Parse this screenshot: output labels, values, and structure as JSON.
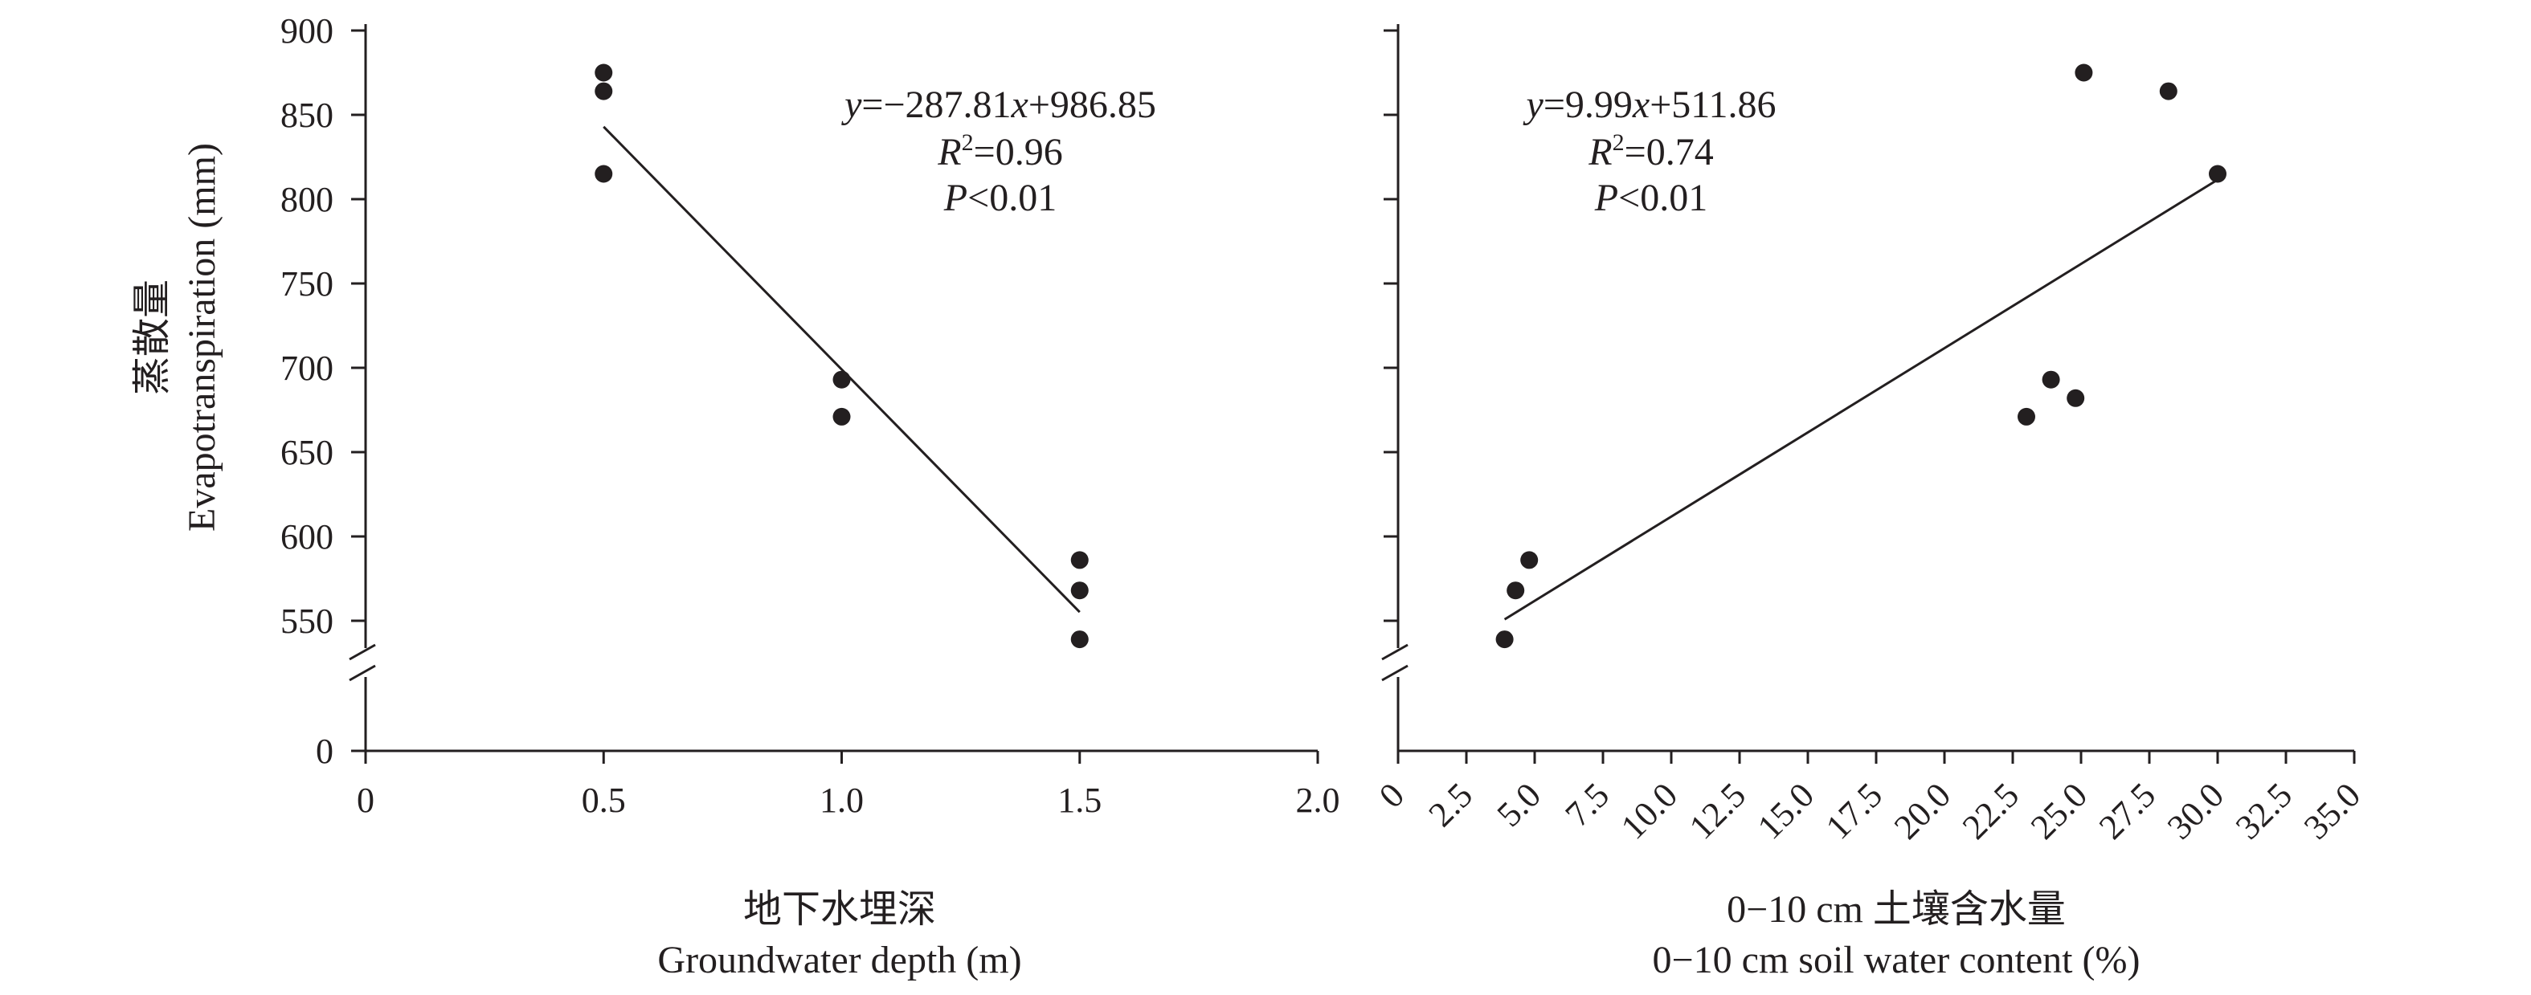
{
  "colors": {
    "ink": "#231f20",
    "background": "#ffffff"
  },
  "y_axis_title": {
    "zh": "蒸散量",
    "en": "Evapotranspiration (mm)"
  },
  "chart_data": [
    {
      "type": "scatter",
      "xlabel_zh": "地下水埋深",
      "xlabel_en": "Groundwater depth (m)",
      "ylabel": "Evapotranspiration (mm)",
      "xlim": [
        0,
        2.0
      ],
      "ylim": [
        0,
        900
      ],
      "y_axis_break": [
        500,
        550
      ],
      "x_ticks": [
        0,
        0.5,
        1.0,
        1.5,
        2.0
      ],
      "x_tick_labels": [
        "0",
        "0.5",
        "1.0",
        "1.5",
        "2.0"
      ],
      "y_ticks": [
        0,
        550,
        600,
        650,
        700,
        750,
        800,
        850,
        900
      ],
      "y_tick_labels": [
        "0",
        "550",
        "600",
        "650",
        "700",
        "750",
        "800",
        "850",
        "900"
      ],
      "grid": false,
      "points": [
        {
          "x": 0.5,
          "y": 875
        },
        {
          "x": 0.5,
          "y": 864
        },
        {
          "x": 0.5,
          "y": 815
        },
        {
          "x": 1.0,
          "y": 693
        },
        {
          "x": 1.0,
          "y": 671
        },
        {
          "x": 1.5,
          "y": 586
        },
        {
          "x": 1.5,
          "y": 568
        },
        {
          "x": 1.5,
          "y": 539
        }
      ],
      "fit": {
        "slope": -287.81,
        "intercept": 986.85,
        "x_range": [
          0.5,
          1.5
        ]
      },
      "annotation": {
        "eq_y": "y",
        "eq_mid": "=−287.81",
        "eq_x": "x",
        "eq_end": "+986.85",
        "r_letter": "R",
        "r_sup": "2",
        "r_val": "=0.96",
        "p_letter": "P",
        "p_val": "<0.01"
      }
    },
    {
      "type": "scatter",
      "xlabel_zh": "0−10 cm 土壤含水量",
      "xlabel_en": "0−10 cm soil water content (%)",
      "ylabel": "",
      "xlim": [
        0,
        35.0
      ],
      "ylim": [
        0,
        900
      ],
      "y_axis_break": [
        500,
        550
      ],
      "x_ticks": [
        0,
        2.5,
        5.0,
        7.5,
        10.0,
        12.5,
        15.0,
        17.5,
        20.0,
        22.5,
        25.0,
        27.5,
        30.0,
        32.5,
        35.0
      ],
      "x_tick_labels": [
        "0",
        "2.5",
        "5.0",
        "7.5",
        "10.0",
        "12.5",
        "15.0",
        "17.5",
        "20.0",
        "22.5",
        "25.0",
        "27.5",
        "30.0",
        "32.5",
        "35.0"
      ],
      "y_ticks": [
        550,
        600,
        650,
        700,
        750,
        800,
        850,
        900
      ],
      "y_tick_labels": [],
      "grid": false,
      "points": [
        {
          "x": 3.9,
          "y": 539
        },
        {
          "x": 4.3,
          "y": 568
        },
        {
          "x": 4.8,
          "y": 586
        },
        {
          "x": 23.0,
          "y": 671
        },
        {
          "x": 23.9,
          "y": 693
        },
        {
          "x": 24.8,
          "y": 682
        },
        {
          "x": 25.1,
          "y": 875
        },
        {
          "x": 28.2,
          "y": 864
        },
        {
          "x": 30.0,
          "y": 815
        }
      ],
      "fit": {
        "slope": 9.99,
        "intercept": 511.86,
        "x_range": [
          3.9,
          30.0
        ]
      },
      "annotation": {
        "eq_y": "y",
        "eq_mid": "=9.99",
        "eq_x": "x",
        "eq_end": "+511.86",
        "r_letter": "R",
        "r_sup": "2",
        "r_val": "=0.74",
        "p_letter": "P",
        "p_val": "<0.01"
      }
    }
  ]
}
